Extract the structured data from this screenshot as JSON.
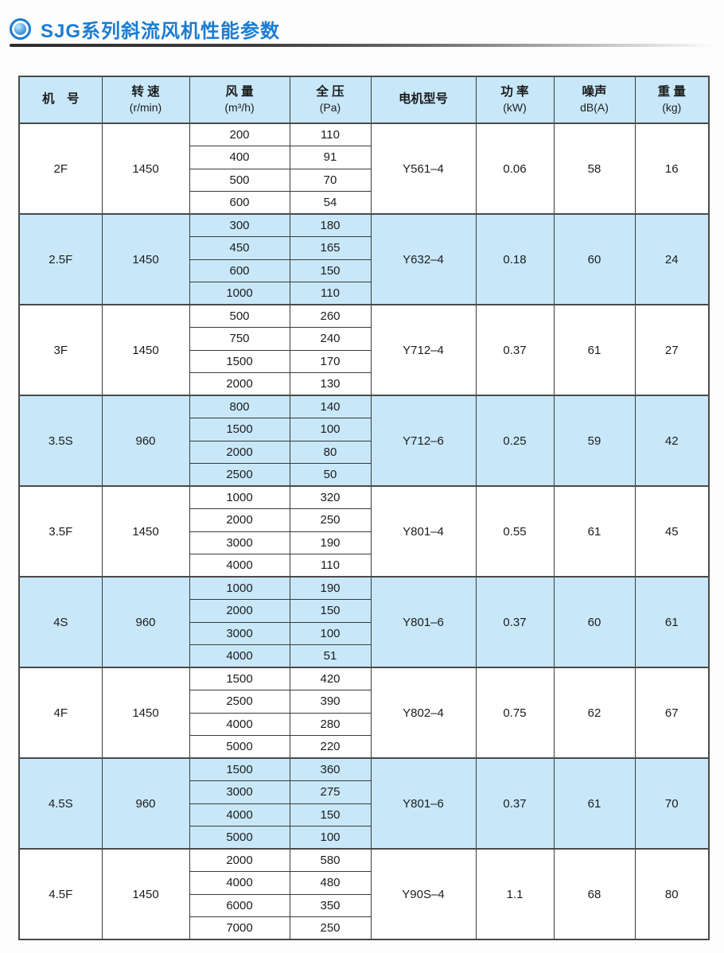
{
  "page": {
    "title": "SJG系列斜流风机性能参数"
  },
  "colors": {
    "title_blue": "#1a7cd2",
    "row_shade_blue": "#c8e8fa"
  },
  "table": {
    "headers": {
      "model": {
        "line1": "机　号",
        "line2": ""
      },
      "speed": {
        "line1": "转 速",
        "line2": "(r/min)"
      },
      "flow": {
        "line1": "风 量",
        "line2": "(m³/h)"
      },
      "pressure": {
        "line1": "全 压",
        "line2": "(Pa)"
      },
      "motor": {
        "line1": "电机型号",
        "line2": ""
      },
      "power": {
        "line1": "功 率",
        "line2": "(kW)"
      },
      "noise": {
        "line1": "噪声",
        "line2": "dB(A)"
      },
      "weight": {
        "line1": "重 量",
        "line2": "(kg)"
      }
    },
    "groups": [
      {
        "model": "2F",
        "speed": "1450",
        "rows": [
          [
            "200",
            "110"
          ],
          [
            "400",
            "91"
          ],
          [
            "500",
            "70"
          ],
          [
            "600",
            "54"
          ]
        ],
        "motor": "Y561–4",
        "power": "0.06",
        "noise": "58",
        "weight": "16",
        "shaded": false
      },
      {
        "model": "2.5F",
        "speed": "1450",
        "rows": [
          [
            "300",
            "180"
          ],
          [
            "450",
            "165"
          ],
          [
            "600",
            "150"
          ],
          [
            "1000",
            "110"
          ]
        ],
        "motor": "Y632–4",
        "power": "0.18",
        "noise": "60",
        "weight": "24",
        "shaded": true
      },
      {
        "model": "3F",
        "speed": "1450",
        "rows": [
          [
            "500",
            "260"
          ],
          [
            "750",
            "240"
          ],
          [
            "1500",
            "170"
          ],
          [
            "2000",
            "130"
          ]
        ],
        "motor": "Y712–4",
        "power": "0.37",
        "noise": "61",
        "weight": "27",
        "shaded": false
      },
      {
        "model": "3.5S",
        "speed": "960",
        "rows": [
          [
            "800",
            "140"
          ],
          [
            "1500",
            "100"
          ],
          [
            "2000",
            "80"
          ],
          [
            "2500",
            "50"
          ]
        ],
        "motor": "Y712–6",
        "power": "0.25",
        "noise": "59",
        "weight": "42",
        "shaded": true
      },
      {
        "model": "3.5F",
        "speed": "1450",
        "rows": [
          [
            "1000",
            "320"
          ],
          [
            "2000",
            "250"
          ],
          [
            "3000",
            "190"
          ],
          [
            "4000",
            "110"
          ]
        ],
        "motor": "Y801–4",
        "power": "0.55",
        "noise": "61",
        "weight": "45",
        "shaded": false
      },
      {
        "model": "4S",
        "speed": "960",
        "rows": [
          [
            "1000",
            "190"
          ],
          [
            "2000",
            "150"
          ],
          [
            "3000",
            "100"
          ],
          [
            "4000",
            "51"
          ]
        ],
        "motor": "Y801–6",
        "power": "0.37",
        "noise": "60",
        "weight": "61",
        "shaded": true
      },
      {
        "model": "4F",
        "speed": "1450",
        "rows": [
          [
            "1500",
            "420"
          ],
          [
            "2500",
            "390"
          ],
          [
            "4000",
            "280"
          ],
          [
            "5000",
            "220"
          ]
        ],
        "motor": "Y802–4",
        "power": "0.75",
        "noise": "62",
        "weight": "67",
        "shaded": false
      },
      {
        "model": "4.5S",
        "speed": "960",
        "rows": [
          [
            "1500",
            "360"
          ],
          [
            "3000",
            "275"
          ],
          [
            "4000",
            "150"
          ],
          [
            "5000",
            "100"
          ]
        ],
        "motor": "Y801–6",
        "power": "0.37",
        "noise": "61",
        "weight": "70",
        "shaded": true
      },
      {
        "model": "4.5F",
        "speed": "1450",
        "rows": [
          [
            "2000",
            "580"
          ],
          [
            "4000",
            "480"
          ],
          [
            "6000",
            "350"
          ],
          [
            "7000",
            "250"
          ]
        ],
        "motor": "Y90S–4",
        "power": "1.1",
        "noise": "68",
        "weight": "80",
        "shaded": false
      }
    ]
  }
}
